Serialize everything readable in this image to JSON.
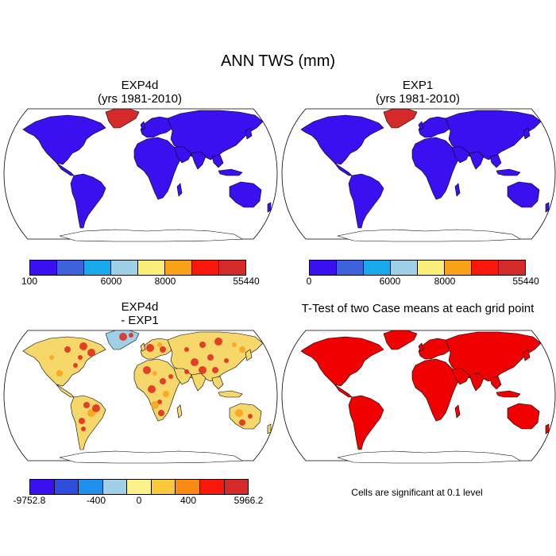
{
  "title": "ANN TWS (mm)",
  "panels": [
    {
      "id": "p1",
      "title_line1": "EXP4d",
      "title_line2": "(yrs 1981-2010)",
      "fill": "#3a10f0",
      "type": "absolute"
    },
    {
      "id": "p2",
      "title_line1": "EXP1",
      "title_line2": "(yrs 1981-2010)",
      "fill": "#3a10f0",
      "type": "absolute"
    },
    {
      "id": "p3",
      "title_line1": "EXP4d",
      "title_line2": "- EXP1",
      "fill": "#f5d76a",
      "type": "difference"
    },
    {
      "id": "p4",
      "title_line1": "T-Test of two Case means at each grid point",
      "title_line2": "",
      "fill": "#f00000",
      "type": "significance"
    }
  ],
  "colorbars": {
    "top_left": {
      "colors": [
        "#3a10f0",
        "#3d63dc",
        "#18a8ec",
        "#9fd0e8",
        "#fbee7a",
        "#f9a219",
        "#f8170a",
        "#d42a2a"
      ],
      "labels": [
        "100",
        "6000",
        "8000",
        "55440"
      ]
    },
    "top_right": {
      "colors": [
        "#3a10f0",
        "#3d63dc",
        "#18a8ec",
        "#9fd0e8",
        "#fbee7a",
        "#f9a219",
        "#f8170a",
        "#d42a2a"
      ],
      "labels": [
        "0",
        "6000",
        "8000",
        "55440"
      ]
    },
    "bottom_left": {
      "colors": [
        "#3a10f0",
        "#2f4ee0",
        "#2090ee",
        "#9fd0e8",
        "#fbf08a",
        "#fbc93a",
        "#f98a12",
        "#f8170a",
        "#d42a2a"
      ],
      "labels": [
        "-9752.8",
        "-400",
        "0",
        "400",
        "5966.2"
      ]
    }
  },
  "significance_note": "Cells are significant at 0.1 level",
  "colors": {
    "greenland_top": "#d42a2a",
    "diff_hot": "#e0241a",
    "diff_mid": "#f9a219",
    "diff_cool": "#9fd0e8"
  }
}
